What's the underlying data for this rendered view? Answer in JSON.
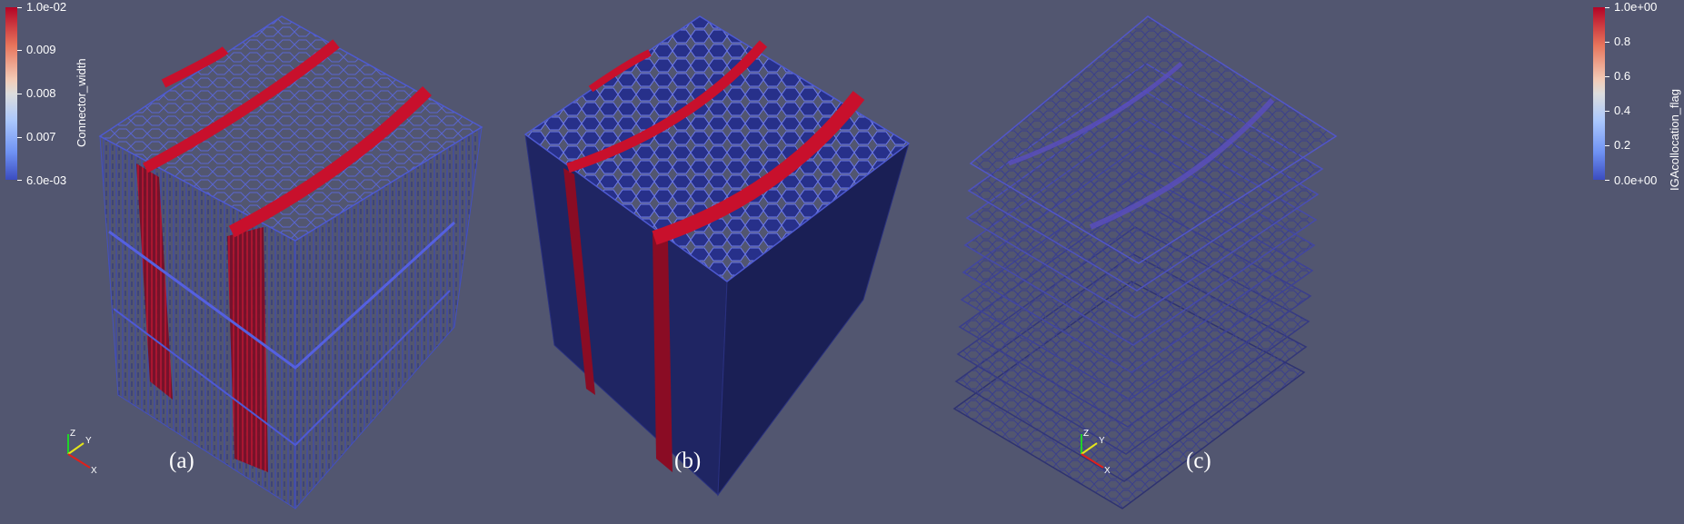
{
  "figure": {
    "panels": [
      {
        "label": "(a)",
        "view": "connector wireframe with horizontal cut planes"
      },
      {
        "label": "(b)",
        "view": "solid block with voronoi top surface"
      },
      {
        "label": "(c)",
        "view": "stacked voronoi layers"
      }
    ]
  },
  "colorbar_left": {
    "title": "Connector_width",
    "ticks": [
      "1.0e-02",
      "0.009",
      "0.008",
      "0.007",
      "6.0e-03"
    ]
  },
  "colorbar_right": {
    "title": "IGAcollocation_flag",
    "ticks": [
      "1.0e+00",
      "0.8",
      "0.6",
      "0.4",
      "0.2",
      "0.0e+00"
    ]
  },
  "axes_triad": {
    "x": "X",
    "y": "Y",
    "z": "Z"
  },
  "colors": {
    "background": "#525670",
    "mesh_blue": "#3c47b8",
    "solid_blue": "#1f2560",
    "band_red": "#c0102a",
    "colormap_top": "#b40426",
    "colormap_bottom": "#3b4cc0"
  }
}
